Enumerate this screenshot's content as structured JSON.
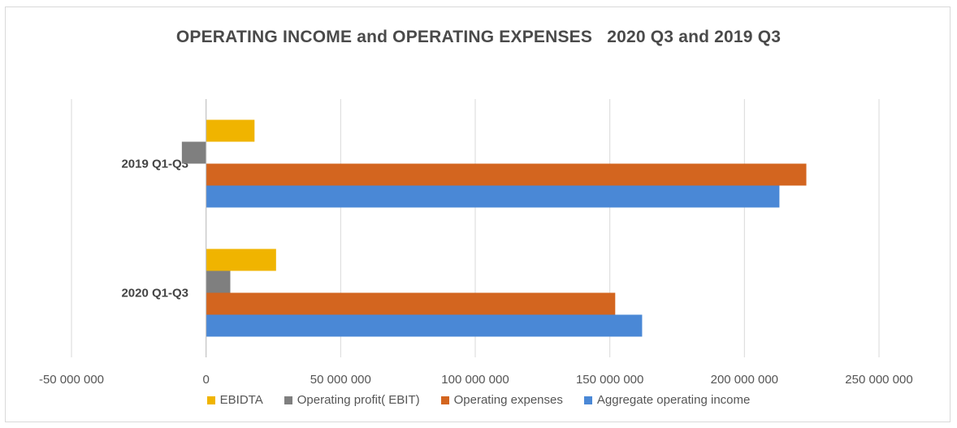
{
  "chart_data": {
    "type": "bar",
    "orientation": "horizontal",
    "title": "OPERATING INCOME and OPERATING EXPENSES   2020 Q3 and 2019 Q3",
    "categories": [
      "2019 Q1-Q3",
      "2020 Q1-Q3"
    ],
    "series": [
      {
        "name": "EBIDTA",
        "color": "#f0b400",
        "values": [
          18000000,
          26000000
        ]
      },
      {
        "name": "Operating profit( EBIT)",
        "color": "#7f7f7f",
        "values": [
          -9000000,
          9000000
        ]
      },
      {
        "name": "Operating expenses",
        "color": "#d3651f",
        "values": [
          223000000,
          152000000
        ]
      },
      {
        "name": "Aggregate operating income",
        "color": "#4a88d6",
        "values": [
          213000000,
          162000000
        ]
      }
    ],
    "xlim": [
      -50000000,
      250000000
    ],
    "xticks": [
      -50000000,
      0,
      50000000,
      100000000,
      150000000,
      200000000,
      250000000
    ],
    "xtick_labels": [
      "-50 000 000",
      "0",
      "50 000 000",
      "100 000 000",
      "150 000 000",
      "200 000 000",
      "250 000 000"
    ],
    "xlabel": "",
    "ylabel": "",
    "grid": true,
    "legend_position": "bottom"
  }
}
